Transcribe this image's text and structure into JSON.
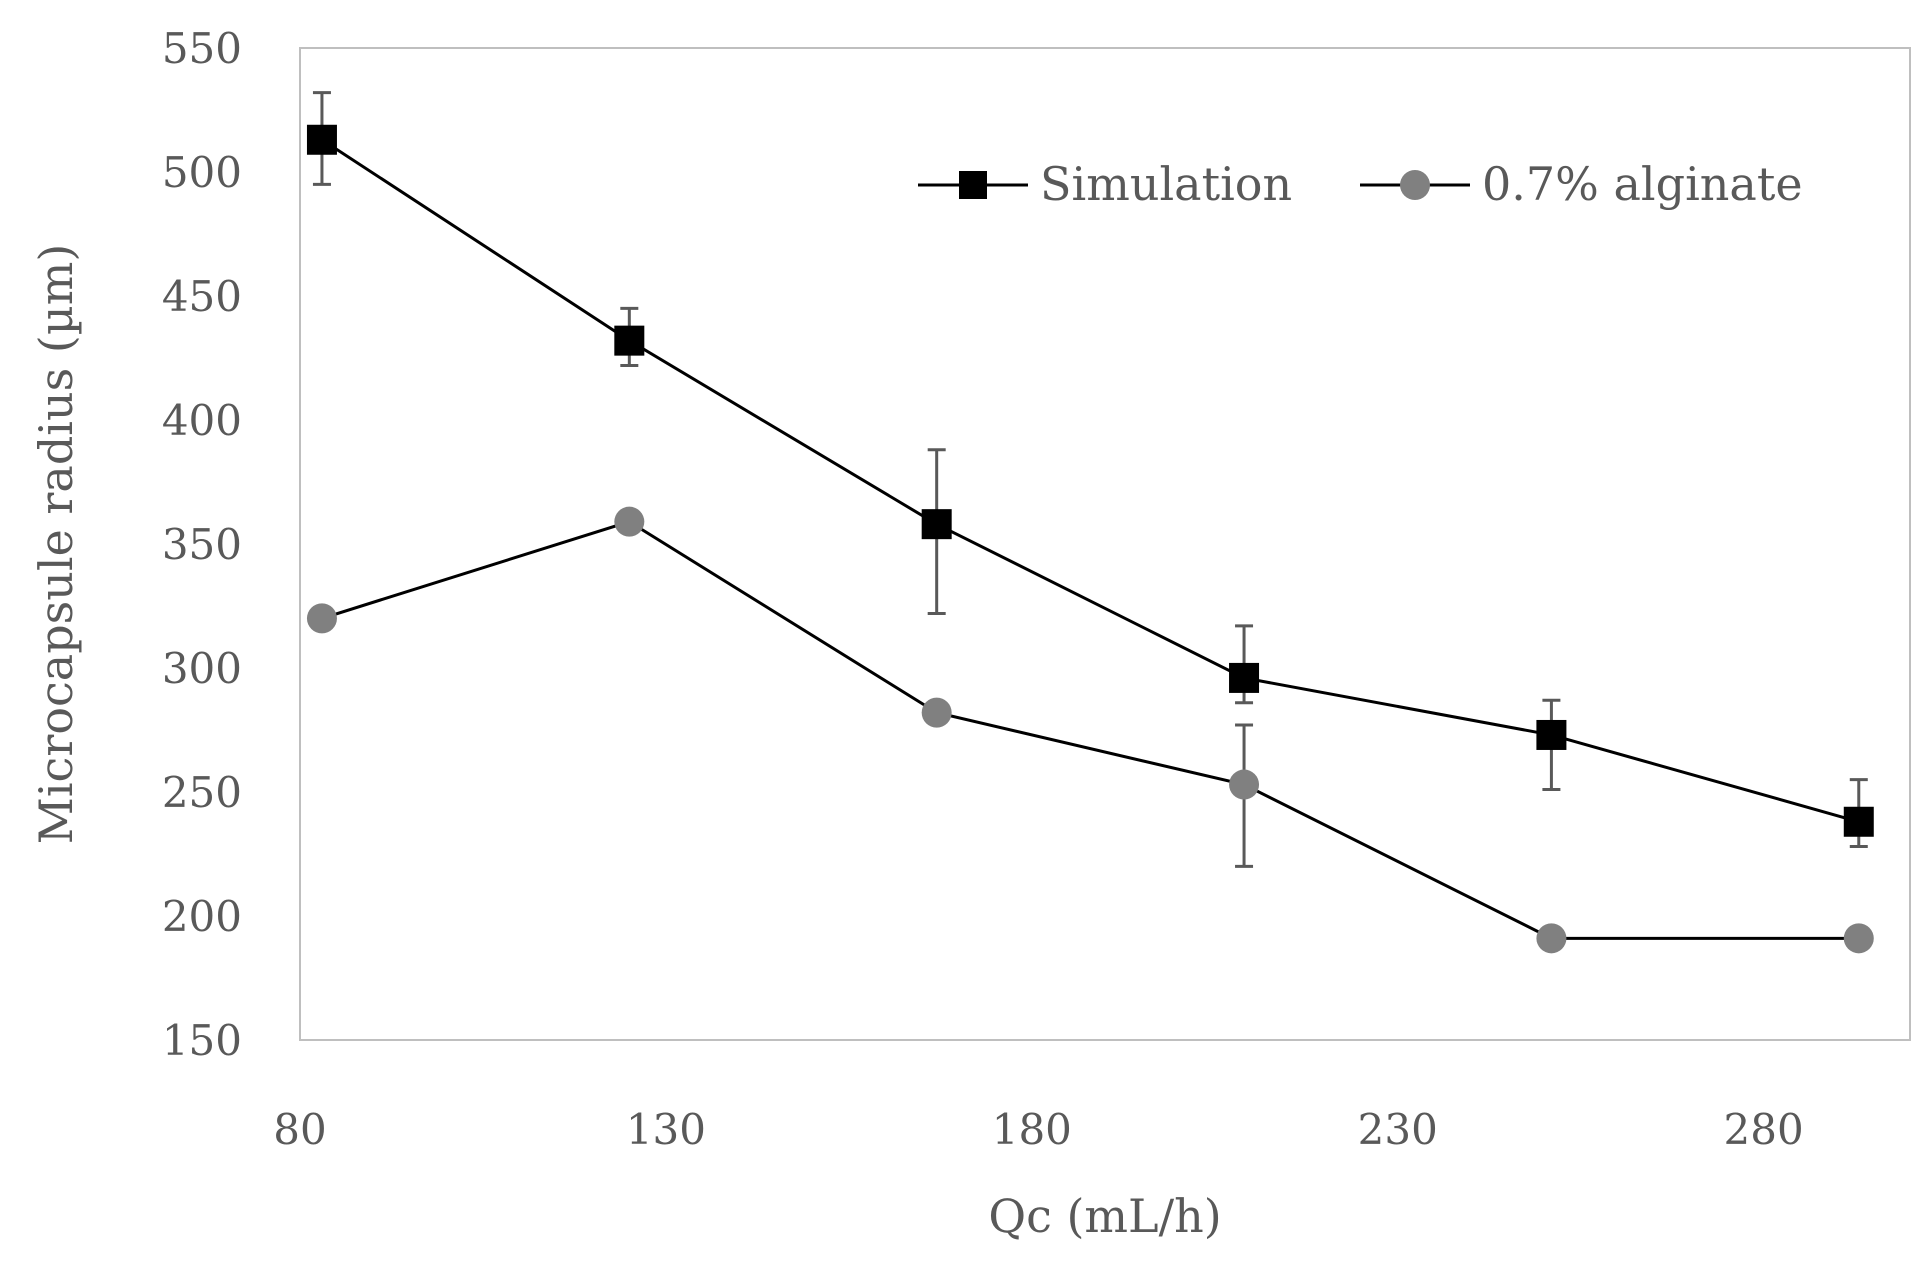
{
  "chart_data": {
    "type": "line",
    "title": "",
    "xlabel": "Qc (mL/h)",
    "ylabel": "Microcapsule radius (µm)",
    "xlim": [
      80,
      300
    ],
    "ylim": [
      150,
      550
    ],
    "xticks": [
      80,
      130,
      180,
      230,
      280
    ],
    "yticks": [
      150,
      200,
      250,
      300,
      350,
      400,
      450,
      500,
      550
    ],
    "grid": false,
    "legend_position": "top-right",
    "series": [
      {
        "name": "Simulation",
        "marker": "square",
        "color": "#000000",
        "x": [
          83,
          125,
          167,
          209,
          251,
          293
        ],
        "y": [
          513,
          432,
          358,
          296,
          273,
          238
        ]
      },
      {
        "name": "0.7% alginate",
        "marker": "circle",
        "color": "#808080",
        "x": [
          83,
          125,
          167,
          209,
          251,
          293
        ],
        "y": [
          320,
          359,
          282,
          253,
          191,
          191
        ],
        "error_low": [
          null,
          null,
          null,
          220,
          null,
          null
        ],
        "error_high": [
          null,
          null,
          null,
          277,
          null,
          null
        ]
      }
    ],
    "simulation_error_bars": {
      "low": [
        495,
        422,
        322,
        286,
        251,
        228
      ],
      "high": [
        532,
        445,
        388,
        317,
        287,
        255
      ]
    }
  }
}
